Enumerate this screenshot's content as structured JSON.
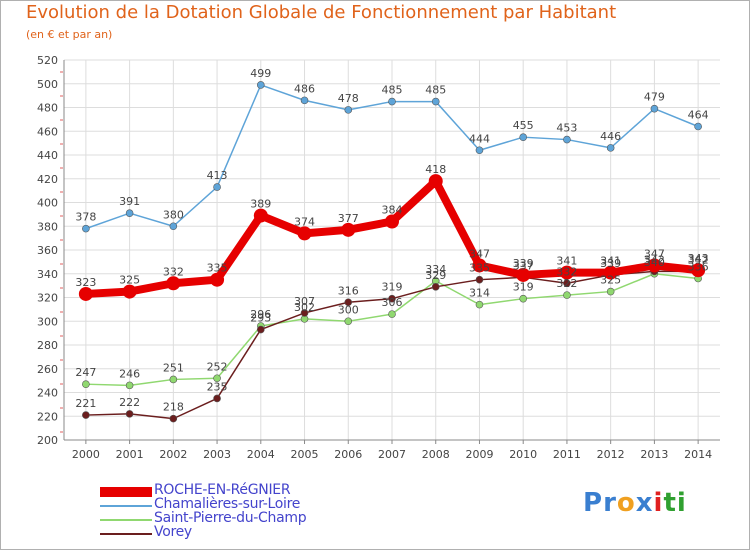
{
  "title": "Evolution de la Dotation Globale de Fonctionnement par Habitant",
  "subtitle": "(en € et par an)",
  "logo": {
    "text": "Proxiti"
  },
  "chart_data": {
    "type": "line",
    "title": "Evolution de la Dotation Globale de Fonctionnement par Habitant",
    "subtitle": "(en € et par an)",
    "xlabel": "",
    "ylabel": "",
    "ylim": [
      200,
      520
    ],
    "ytick_step": 20,
    "grid": true,
    "legend_position": "bottom-left",
    "x": [
      2000,
      2001,
      2002,
      2003,
      2004,
      2005,
      2006,
      2007,
      2008,
      2009,
      2010,
      2011,
      2012,
      2013,
      2014
    ],
    "series": [
      {
        "name": "ROCHE-EN-RéGNIER",
        "color": "#e60000",
        "emphasis": true,
        "values": [
          323,
          325,
          332,
          335,
          389,
          374,
          377,
          384,
          418,
          347,
          339,
          341,
          341,
          347,
          343
        ]
      },
      {
        "name": "Chamalières-sur-Loire",
        "color": "#5ea4d8",
        "values": [
          378,
          391,
          380,
          413,
          499,
          486,
          478,
          485,
          485,
          444,
          455,
          453,
          446,
          479,
          464
        ]
      },
      {
        "name": "Saint-Pierre-du-Champ",
        "color": "#90d870",
        "values": [
          247,
          246,
          251,
          252,
          296,
          302,
          300,
          306,
          334,
          314,
          319,
          322,
          325,
          340,
          336
        ]
      },
      {
        "name": "Vorey",
        "color": "#6b1e1e",
        "values": [
          221,
          222,
          218,
          235,
          293,
          307,
          316,
          319,
          329,
          335,
          337,
          332,
          339,
          342,
          342
        ]
      }
    ]
  }
}
